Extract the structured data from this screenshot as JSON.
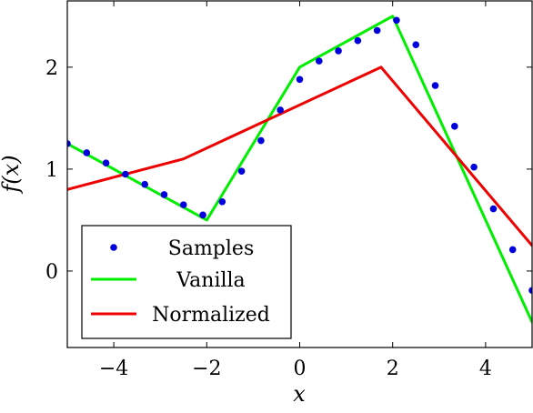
{
  "chart_data": {
    "type": "line",
    "title": "",
    "xlabel": "x",
    "ylabel": "f(x)",
    "xlim": [
      -5,
      5
    ],
    "ylim": [
      -0.75,
      2.65
    ],
    "xticks": [
      -4,
      -2,
      0,
      2,
      4
    ],
    "yticks": [
      0,
      1,
      2
    ],
    "xtick_labels": [
      "−4",
      "−2",
      "0",
      "2",
      "4"
    ],
    "ytick_labels": [
      "0",
      "1",
      "2"
    ],
    "grid": false,
    "legend_position": "bottom-left",
    "series": [
      {
        "name": "Samples",
        "style": "markers",
        "color": "#0000dd",
        "x": [
          -5,
          -4.583,
          -4.167,
          -3.75,
          -3.333,
          -2.917,
          -2.5,
          -2.083,
          -1.667,
          -1.25,
          -0.833,
          -0.417,
          0,
          0.417,
          0.833,
          1.25,
          1.667,
          2.083,
          2.5,
          2.917,
          3.333,
          3.75,
          4.167,
          4.583,
          5
        ],
        "y": [
          1.25,
          1.16,
          1.06,
          0.95,
          0.85,
          0.75,
          0.65,
          0.55,
          0.68,
          0.98,
          1.28,
          1.58,
          1.88,
          2.06,
          2.16,
          2.26,
          2.36,
          2.46,
          2.22,
          1.82,
          1.42,
          1.02,
          0.61,
          0.21,
          -0.19
        ]
      },
      {
        "name": "Vanilla",
        "style": "line",
        "color": "#00ee00",
        "x": [
          -5,
          -2,
          0,
          2,
          5
        ],
        "y": [
          1.25,
          0.5,
          2.0,
          2.5,
          -0.5
        ]
      },
      {
        "name": "Normalized",
        "style": "line",
        "color": "#ee0000",
        "x": [
          -5,
          -2.5,
          1.75,
          5
        ],
        "y": [
          0.8,
          1.1,
          2.0,
          0.25
        ]
      }
    ]
  }
}
